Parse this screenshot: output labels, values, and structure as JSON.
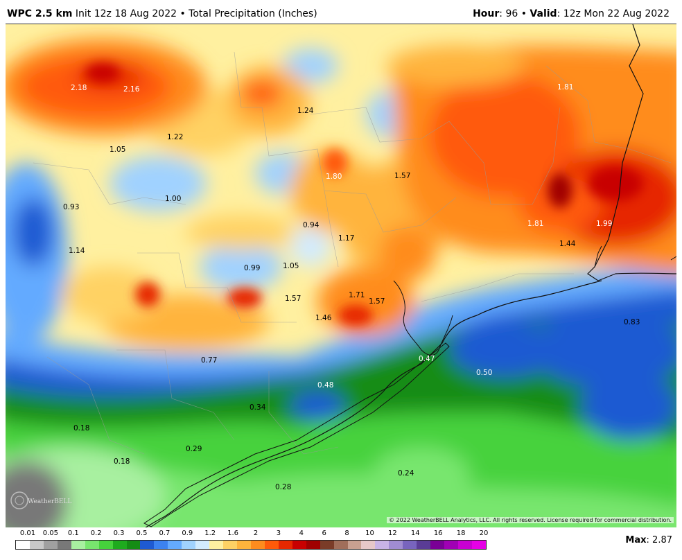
{
  "header": {
    "model": "WPC 2.5 km",
    "init_text": "Init 12z 18 Aug 2022 • Total Precipitation (Inches)",
    "hour_label": "Hour",
    "hour_value": ": 96 • ",
    "valid_label": "Valid",
    "valid_value": ": 12z Mon 22 Aug 2022"
  },
  "map_labels": [
    {
      "id": "l1",
      "text": "2.18",
      "color": "white"
    },
    {
      "id": "l2",
      "text": "2.16",
      "color": "white"
    },
    {
      "id": "l3",
      "text": "1.24",
      "color": "black"
    },
    {
      "id": "l4",
      "text": "1.81",
      "color": "white"
    },
    {
      "id": "l5",
      "text": "1.22",
      "color": "black"
    },
    {
      "id": "l6",
      "text": "1.05",
      "color": "black"
    },
    {
      "id": "l7",
      "text": "1.80",
      "color": "white"
    },
    {
      "id": "l8",
      "text": "1.57",
      "color": "black"
    },
    {
      "id": "l9",
      "text": "1.00",
      "color": "black"
    },
    {
      "id": "l10",
      "text": "0.93",
      "color": "black"
    },
    {
      "id": "l11",
      "text": "0.94",
      "color": "black"
    },
    {
      "id": "l12",
      "text": "1.17",
      "color": "black"
    },
    {
      "id": "l13",
      "text": "1.81",
      "color": "white"
    },
    {
      "id": "l14",
      "text": "1.99",
      "color": "white"
    },
    {
      "id": "l15",
      "text": "1.44",
      "color": "black"
    },
    {
      "id": "l16",
      "text": "1.14",
      "color": "black"
    },
    {
      "id": "l17",
      "text": "0.99",
      "color": "black"
    },
    {
      "id": "l18",
      "text": "1.05",
      "color": "black"
    },
    {
      "id": "l19",
      "text": "1.71",
      "color": "black"
    },
    {
      "id": "l20",
      "text": "1.57",
      "color": "black"
    },
    {
      "id": "l21",
      "text": "1.57",
      "color": "black"
    },
    {
      "id": "l22",
      "text": "1.46",
      "color": "black"
    },
    {
      "id": "l23",
      "text": "0.83",
      "color": "black"
    },
    {
      "id": "l24",
      "text": "0.77",
      "color": "black"
    },
    {
      "id": "l25",
      "text": "0.47",
      "color": "white"
    },
    {
      "id": "l26",
      "text": "0.50",
      "color": "white"
    },
    {
      "id": "l27",
      "text": "0.48",
      "color": "white"
    },
    {
      "id": "l28",
      "text": "0.34",
      "color": "black"
    },
    {
      "id": "l29",
      "text": "0.18",
      "color": "black"
    },
    {
      "id": "l30",
      "text": "0.29",
      "color": "black"
    },
    {
      "id": "l31",
      "text": "0.18",
      "color": "black"
    },
    {
      "id": "l32",
      "text": "0.24",
      "color": "black"
    },
    {
      "id": "l33",
      "text": "0.28",
      "color": "black"
    }
  ],
  "copyright": "© 2022 WeatherBELL Analytics, LLC. All rights reserved. License required for commercial distribution.",
  "logo_text": "WeatherBELL",
  "legend": {
    "ticks": [
      "0.01",
      "0.05",
      "0.1",
      "0.2",
      "0.3",
      "0.5",
      "0.7",
      "0.9",
      "1.2",
      "1.6",
      "2",
      "3",
      "4",
      "6",
      "8",
      "10",
      "12",
      "14",
      "16",
      "18",
      "20"
    ],
    "colors": [
      "#ffffff",
      "#c8c8c8",
      "#a0a0a0",
      "#787878",
      "#a8f0a0",
      "#78e66e",
      "#46d23c",
      "#1eaa1e",
      "#148c14",
      "#1e5ad2",
      "#3c82f0",
      "#64aaff",
      "#a0d2ff",
      "#d2ebff",
      "#fff0a0",
      "#ffd264",
      "#ffb43c",
      "#ff8c1e",
      "#ff5a0a",
      "#e62800",
      "#c80000",
      "#a00000",
      "#7a3c28",
      "#a06e5a",
      "#c8a090",
      "#e6c8c8",
      "#c8b4e6",
      "#a08cd2",
      "#7864be",
      "#5a3c96",
      "#7a0096",
      "#a000b4",
      "#c800d2",
      "#e600e6"
    ]
  },
  "max_label": "Max",
  "max_value": ": 2.87"
}
